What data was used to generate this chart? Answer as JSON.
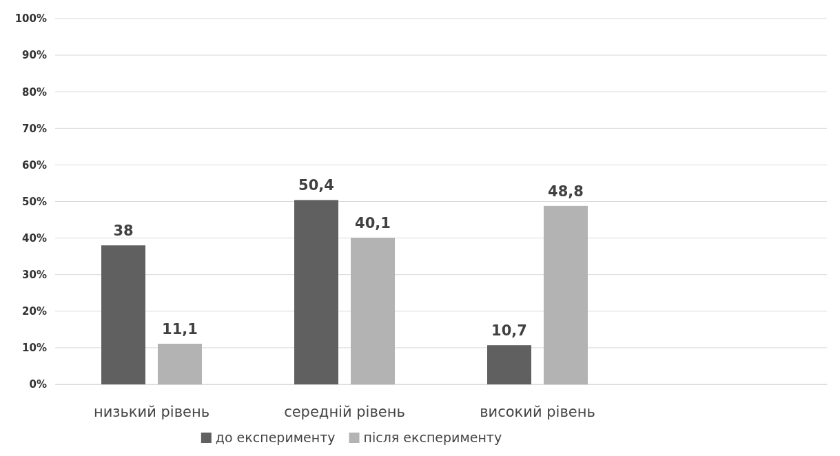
{
  "chart_data": {
    "type": "bar",
    "categories": [
      "низький рівень",
      "середній рівень",
      "високий рівень",
      null
    ],
    "series": [
      {
        "name": "до експерименту",
        "color": "#606060",
        "values": [
          38,
          50.4,
          10.7,
          null
        ],
        "value_labels": [
          "38",
          "50,4",
          "10,7",
          null
        ]
      },
      {
        "name": "після експерименту",
        "color": "#b3b3b3",
        "values": [
          11.1,
          40.1,
          48.8,
          null
        ],
        "value_labels": [
          "11,1",
          "40,1",
          "48,8",
          null
        ]
      }
    ],
    "ylim": [
      0,
      100
    ],
    "yticks": [
      {
        "value": 0,
        "label": "0%"
      },
      {
        "value": 10,
        "label": "10%"
      },
      {
        "value": 20,
        "label": "20%"
      },
      {
        "value": 30,
        "label": "30%"
      },
      {
        "value": 40,
        "label": "40%"
      },
      {
        "value": 50,
        "label": "50%"
      },
      {
        "value": 60,
        "label": "60%"
      },
      {
        "value": 70,
        "label": "70%"
      },
      {
        "value": 80,
        "label": "80%"
      },
      {
        "value": 90,
        "label": "90%"
      },
      {
        "value": 100,
        "label": "100%"
      }
    ],
    "grid": "y",
    "legend": "bottom"
  }
}
